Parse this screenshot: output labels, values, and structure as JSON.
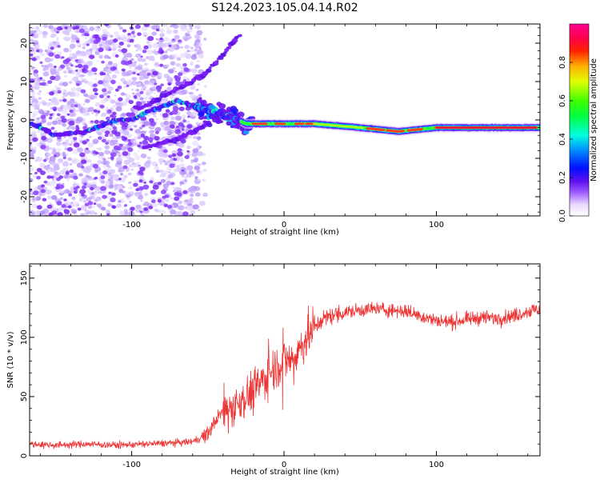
{
  "title": "S124.2023.105.04.14.R02",
  "chart_data": [
    {
      "type": "heatmap",
      "xlabel": "Height of straight line (km)",
      "ylabel": "Frequency (Hz)",
      "xlim": [
        -167,
        168
      ],
      "ylim": [
        -25,
        25
      ],
      "xticks": [
        -100,
        0,
        100
      ],
      "yticks": [
        -20,
        -10,
        0,
        10,
        20
      ],
      "grid": false,
      "colorbar": {
        "label": "Normalized spectral amplitude",
        "ticks": [
          0.0,
          0.2,
          0.4,
          0.6,
          0.8
        ],
        "range": [
          0,
          1
        ],
        "colormap": "white-purple-blue-cyan-green-yellow-red-magenta"
      },
      "description_points": {
        "main_tone_frequency_hz": [
          [
            -165,
            -1
          ],
          [
            -150,
            -4
          ],
          [
            -130,
            -3
          ],
          [
            -110,
            0
          ],
          [
            -100,
            0
          ],
          [
            -90,
            2
          ],
          [
            -70,
            5
          ],
          [
            -55,
            3
          ],
          [
            -45,
            2
          ],
          [
            -35,
            1
          ],
          [
            -25,
            -1
          ],
          [
            0,
            -1
          ],
          [
            20,
            -1
          ],
          [
            50,
            -2
          ],
          [
            75,
            -3
          ],
          [
            100,
            -2
          ],
          [
            168,
            -2
          ]
        ],
        "upper_branch_frequency_hz": [
          [
            -95,
            3
          ],
          [
            -80,
            6
          ],
          [
            -65,
            9
          ],
          [
            -52,
            12
          ],
          [
            -40,
            17
          ],
          [
            -30,
            22
          ]
        ],
        "lower_branch_frequency_hz": [
          [
            -90,
            -7
          ],
          [
            -80,
            -6
          ],
          [
            -70,
            -5
          ],
          [
            -60,
            -3
          ],
          [
            -50,
            -1
          ]
        ]
      }
    },
    {
      "type": "line",
      "xlabel": "Height of straight line (km)",
      "ylabel": "SNR (10 * v/v)",
      "xlim": [
        -167,
        168
      ],
      "ylim": [
        0,
        162
      ],
      "xticks": [
        -100,
        0,
        100
      ],
      "yticks": [
        0,
        50,
        100,
        150
      ],
      "grid": false,
      "series": [
        {
          "color": "#ee3333",
          "x": [
            -167,
            -150,
            -130,
            -110,
            -90,
            -70,
            -60,
            -50,
            -45,
            -40,
            -35,
            -30,
            -25,
            -20,
            -15,
            -10,
            -5,
            0,
            5,
            10,
            15,
            20,
            25,
            30,
            40,
            50,
            60,
            70,
            80,
            90,
            100,
            110,
            120,
            130,
            140,
            150,
            160,
            168
          ],
          "values": [
            10,
            9,
            10,
            9,
            10,
            11,
            12,
            18,
            30,
            38,
            40,
            45,
            50,
            55,
            62,
            70,
            76,
            80,
            82,
            90,
            100,
            108,
            115,
            118,
            121,
            123,
            124,
            123,
            122,
            118,
            114,
            113,
            115,
            117,
            116,
            118,
            122,
            124
          ]
        }
      ]
    }
  ]
}
